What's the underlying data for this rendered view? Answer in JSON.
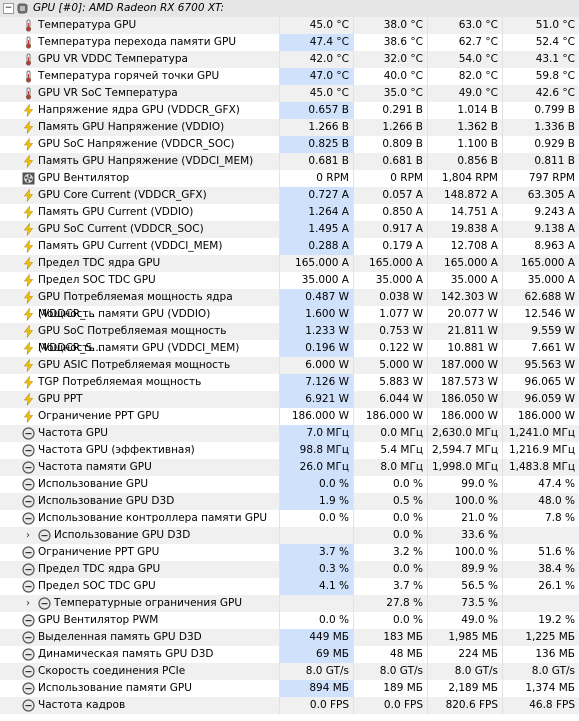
{
  "group_title": "GPU [#0]: AMD Radeon RX 6700 XT:",
  "rows": [
    {
      "icon": "thermometer-icon",
      "label": "Температура GPU",
      "v": [
        "45.0 °C",
        "38.0 °C",
        "63.0 °C",
        "51.0 °C"
      ]
    },
    {
      "icon": "thermometer-icon",
      "label": "Температура перехода памяти GPU",
      "v": [
        "47.4 °C",
        "38.6 °C",
        "62.7 °C",
        "52.4 °C"
      ],
      "hl": true
    },
    {
      "icon": "thermometer-icon",
      "label": "GPU VR VDDC Температура",
      "v": [
        "42.0 °C",
        "32.0 °C",
        "54.0 °C",
        "43.1 °C"
      ]
    },
    {
      "icon": "thermometer-icon",
      "label": "Температура горячей точки GPU",
      "v": [
        "47.0 °C",
        "40.0 °C",
        "82.0 °C",
        "59.8 °C"
      ],
      "hl": true
    },
    {
      "icon": "thermometer-icon",
      "label": "GPU VR SoC Температура",
      "v": [
        "45.0 °C",
        "35.0 °C",
        "49.0 °C",
        "42.6 °C"
      ]
    },
    {
      "icon": "lightning-icon",
      "label": "Напряжение ядра GPU (VDDCR_GFX)",
      "v": [
        "0.657 В",
        "0.291 В",
        "1.014 В",
        "0.799 В"
      ],
      "hl": true
    },
    {
      "icon": "lightning-icon",
      "label": "Память GPU Напряжение (VDDIO)",
      "v": [
        "1.266 В",
        "1.266 В",
        "1.362 В",
        "1.336 В"
      ]
    },
    {
      "icon": "lightning-icon",
      "label": "GPU SoC Напряжение (VDDCR_SOC)",
      "v": [
        "0.825 В",
        "0.809 В",
        "1.100 В",
        "0.929 В"
      ],
      "hl": true
    },
    {
      "icon": "lightning-icon",
      "label": "Память GPU Напряжение (VDDCI_MEM)",
      "v": [
        "0.681 В",
        "0.681 В",
        "0.856 В",
        "0.811 В"
      ]
    },
    {
      "icon": "fan-icon",
      "label": "GPU Вентилятор",
      "v": [
        "0 RPM",
        "0 RPM",
        "1,804 RPM",
        "797 RPM"
      ]
    },
    {
      "icon": "lightning-icon",
      "label": "GPU Core Current (VDDCR_GFX)",
      "v": [
        "0.727 A",
        "0.057 A",
        "148.872 A",
        "63.305 A"
      ],
      "hl": true
    },
    {
      "icon": "lightning-icon",
      "label": "Память GPU Current (VDDIO)",
      "v": [
        "1.264 A",
        "0.850 A",
        "14.751 A",
        "9.243 A"
      ],
      "hl": true
    },
    {
      "icon": "lightning-icon",
      "label": "GPU SoC Current (VDDCR_SOC)",
      "v": [
        "1.495 A",
        "0.917 A",
        "19.838 A",
        "9.138 A"
      ],
      "hl": true
    },
    {
      "icon": "lightning-icon",
      "label": "Память GPU Current (VDDCI_MEM)",
      "v": [
        "0.288 A",
        "0.179 A",
        "12.708 A",
        "8.963 A"
      ],
      "hl": true
    },
    {
      "icon": "lightning-icon",
      "label": "Предел TDC ядра GPU",
      "v": [
        "165.000 A",
        "165.000 A",
        "165.000 A",
        "165.000 A"
      ]
    },
    {
      "icon": "lightning-icon",
      "label": "Предел SOC TDC GPU",
      "v": [
        "35.000 A",
        "35.000 A",
        "35.000 A",
        "35.000 A"
      ]
    },
    {
      "icon": "lightning-icon",
      "label": "GPU Потребляемая мощность ядра (VDDCR_...",
      "v": [
        "0.487 W",
        "0.038 W",
        "142.303 W",
        "62.688 W"
      ],
      "hl": true
    },
    {
      "icon": "lightning-icon",
      "label": "Мощность памяти GPU (VDDIO)",
      "v": [
        "1.600 W",
        "1.077 W",
        "20.077 W",
        "12.546 W"
      ],
      "hl": true
    },
    {
      "icon": "lightning-icon",
      "label": "GPU SoC Потребляемая мощность (VDDCR_S...",
      "v": [
        "1.233 W",
        "0.753 W",
        "21.811 W",
        "9.559 W"
      ],
      "hl": true
    },
    {
      "icon": "lightning-icon",
      "label": "Мощность памяти GPU (VDDCI_MEM)",
      "v": [
        "0.196 W",
        "0.122 W",
        "10.881 W",
        "7.661 W"
      ],
      "hl": true
    },
    {
      "icon": "lightning-icon",
      "label": "GPU ASIC Потребляемая мощность",
      "v": [
        "6.000 W",
        "5.000 W",
        "187.000 W",
        "95.563 W"
      ]
    },
    {
      "icon": "lightning-icon",
      "label": "TGP Потребляемая мощность",
      "v": [
        "7.126 W",
        "5.883 W",
        "187.573 W",
        "96.065 W"
      ],
      "hl": true
    },
    {
      "icon": "lightning-icon",
      "label": "GPU PPT",
      "v": [
        "6.921 W",
        "6.044 W",
        "186.050 W",
        "96.059 W"
      ],
      "hl": true
    },
    {
      "icon": "lightning-icon",
      "label": "Ограничение PPT GPU",
      "v": [
        "186.000 W",
        "186.000 W",
        "186.000 W",
        "186.000 W"
      ]
    },
    {
      "icon": "clock-icon",
      "label": "Частота GPU",
      "v": [
        "7.0 МГц",
        "0.0 МГц",
        "2,630.0 МГц",
        "1,241.0 МГц"
      ],
      "hl": true
    },
    {
      "icon": "clock-icon",
      "label": "Частота GPU (эффективная)",
      "v": [
        "98.8 МГц",
        "5.4 МГц",
        "2,594.7 МГц",
        "1,216.9 МГц"
      ],
      "hl": true
    },
    {
      "icon": "clock-icon",
      "label": "Частота памяти GPU",
      "v": [
        "26.0 МГц",
        "8.0 МГц",
        "1,998.0 МГц",
        "1,483.8 МГц"
      ],
      "hl": true
    },
    {
      "icon": "clock-icon",
      "label": "Использование GPU",
      "v": [
        "0.0 %",
        "0.0 %",
        "99.0 %",
        "47.4 %"
      ],
      "hl": true
    },
    {
      "icon": "clock-icon",
      "label": "Использование GPU D3D",
      "v": [
        "1.9 %",
        "0.5 %",
        "100.0 %",
        "48.0 %"
      ],
      "hl": true
    },
    {
      "icon": "clock-icon",
      "label": "Использование контроллера памяти GPU",
      "v": [
        "0.0 %",
        "0.0 %",
        "21.0 %",
        "7.8 %"
      ]
    },
    {
      "icon": "clock-icon",
      "label": "Использование GPU D3D",
      "v": [
        "",
        "0.0 %",
        "33.6 %",
        ""
      ],
      "expand": true
    },
    {
      "icon": "clock-icon",
      "label": "Ограничение PPT GPU",
      "v": [
        "3.7 %",
        "3.2 %",
        "100.0 %",
        "51.6 %"
      ],
      "hl": true
    },
    {
      "icon": "clock-icon",
      "label": "Предел TDC ядра GPU",
      "v": [
        "0.3 %",
        "0.0 %",
        "89.9 %",
        "38.4 %"
      ],
      "hl": true
    },
    {
      "icon": "clock-icon",
      "label": "Предел SOC TDC GPU",
      "v": [
        "4.1 %",
        "3.7 %",
        "56.5 %",
        "26.1 %"
      ],
      "hl": true
    },
    {
      "icon": "clock-icon",
      "label": "Температурные ограничения GPU",
      "v": [
        "",
        "27.8 %",
        "73.5 %",
        ""
      ],
      "expand": true
    },
    {
      "icon": "clock-icon",
      "label": "GPU Вентилятор PWM",
      "v": [
        "0.0 %",
        "0.0 %",
        "49.0 %",
        "19.2 %"
      ]
    },
    {
      "icon": "clock-icon",
      "label": "Выделенная память GPU D3D",
      "v": [
        "449 МБ",
        "183 МБ",
        "1,985 МБ",
        "1,225 МБ"
      ],
      "hl": true
    },
    {
      "icon": "clock-icon",
      "label": "Динамическая память GPU D3D",
      "v": [
        "69 МБ",
        "48 МБ",
        "224 МБ",
        "136 МБ"
      ],
      "hl": true
    },
    {
      "icon": "clock-icon",
      "label": "Скорость соединения PCIe",
      "v": [
        "8.0 GT/s",
        "8.0 GT/s",
        "8.0 GT/s",
        "8.0 GT/s"
      ]
    },
    {
      "icon": "clock-icon",
      "label": "Использование памяти GPU",
      "v": [
        "894 МБ",
        "189 МБ",
        "2,189 МБ",
        "1,374 МБ"
      ],
      "hl": true
    },
    {
      "icon": "clock-icon",
      "label": "Частота кадров",
      "v": [
        "0.0 FPS",
        "0.0 FPS",
        "820.6 FPS",
        "46.8 FPS"
      ]
    }
  ]
}
